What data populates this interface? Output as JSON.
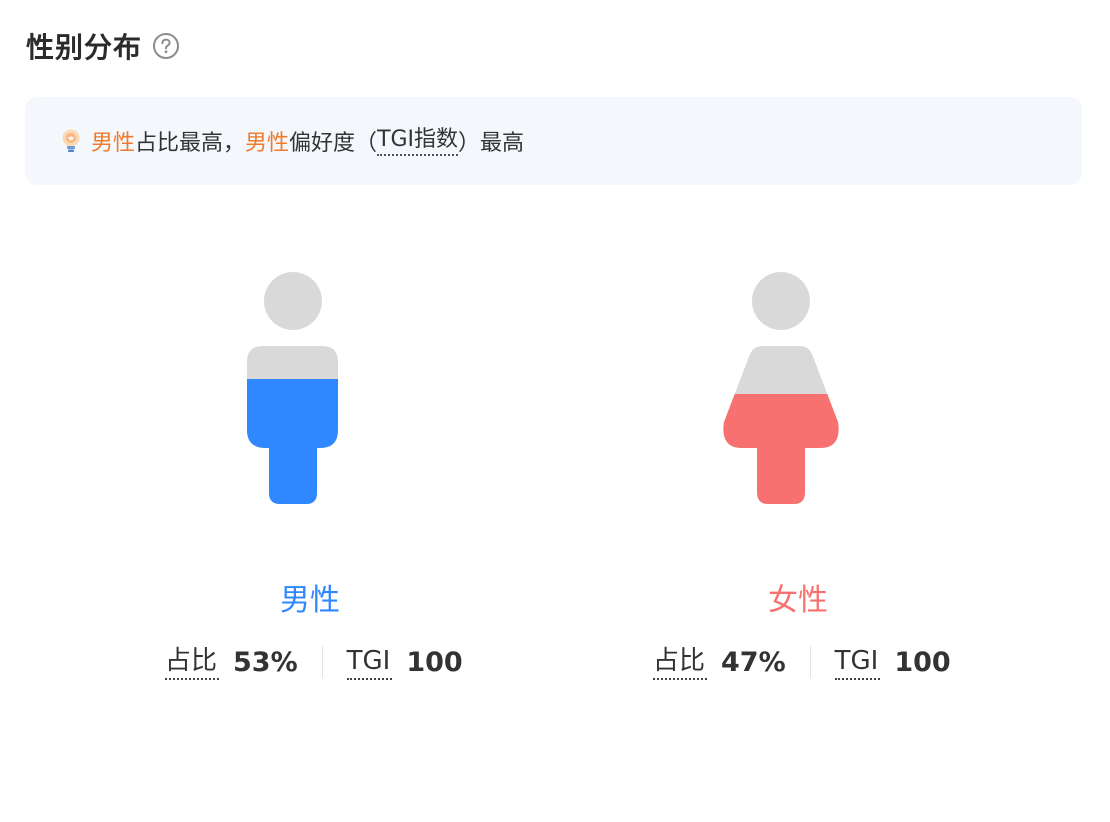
{
  "title": "性别分布",
  "help_icon": "question-circle-icon",
  "tip": {
    "icon": "lightbulb-icon",
    "segments": [
      {
        "text": "男性",
        "style": "accent"
      },
      {
        "text": "占比最高，",
        "style": "plain"
      },
      {
        "text": "男性",
        "style": "accent"
      },
      {
        "text": "偏好度（",
        "style": "plain"
      },
      {
        "text": "TGI指数",
        "style": "dotted"
      },
      {
        "text": "）最高",
        "style": "plain"
      }
    ],
    "accent_color": "#f07a2c",
    "background": "#f4f8fd"
  },
  "chart_data": {
    "type": "pictogram",
    "categories": [
      "男性",
      "女性"
    ],
    "series": [
      {
        "name": "占比",
        "values": [
          0.53,
          0.47
        ],
        "display": [
          "53%",
          "47%"
        ]
      },
      {
        "name": "TGI",
        "values": [
          100,
          100
        ],
        "display": [
          "100",
          "100"
        ]
      }
    ],
    "colors": {
      "男性": "#2f88ff",
      "女性": "#f87171",
      "empty": "#d9d9d9"
    }
  },
  "male": {
    "label": "男性",
    "share_label": "占比",
    "share_value": "53%",
    "tgi_label": "TGI",
    "tgi_value": "100",
    "color": "#2f88ff",
    "icon": "male-figure-icon"
  },
  "female": {
    "label": "女性",
    "share_label": "占比",
    "share_value": "47%",
    "tgi_label": "TGI",
    "tgi_value": "100",
    "color": "#f87171",
    "icon": "female-figure-icon"
  }
}
